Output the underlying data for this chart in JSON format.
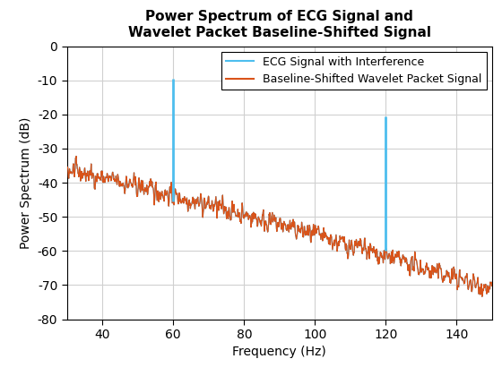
{
  "title": "Power Spectrum of ECG Signal and\nWavelet Packet Baseline-Shifted Signal",
  "xlabel": "Frequency (Hz)",
  "ylabel": "Power Spectrum (dB)",
  "xlim": [
    30,
    150
  ],
  "ylim": [
    -80,
    0
  ],
  "yticks": [
    0,
    -10,
    -20,
    -30,
    -40,
    -50,
    -60,
    -70,
    -80
  ],
  "xticks": [
    40,
    60,
    80,
    100,
    120,
    140
  ],
  "ecg_color": "#4DBEEE",
  "baseline_color": "#D95319",
  "legend_labels": [
    "ECG Signal with Interference",
    "Baseline-Shifted Wavelet Packet Signal"
  ],
  "spike1_freq": 60,
  "spike1_peak": -9.5,
  "spike2_freq": 120,
  "spike2_peak": -20.5,
  "seed": 42,
  "background_color": "#ffffff",
  "grid_color": "#d0d0d0",
  "title_fontsize": 11,
  "label_fontsize": 10,
  "tick_fontsize": 10,
  "legend_fontsize": 9
}
